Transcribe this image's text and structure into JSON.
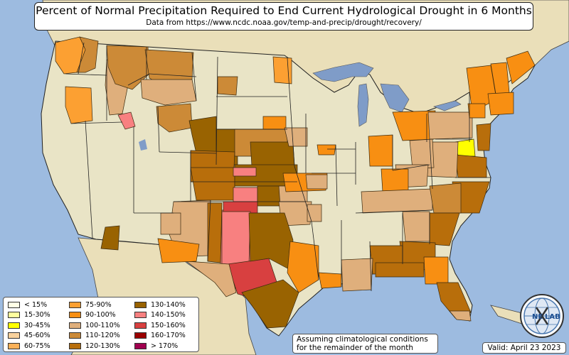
{
  "title": "Percent of Normal Precipitation Required to End Current Hydrological Drought in 6 Months",
  "subtitle": "Data from https://www.ncdc.noaa.gov/temp-and-precip/drought/recovery/",
  "note_line1": "Assuming climatological conditions",
  "note_line2": "for the remainder of the month",
  "valid": "Valid: April 23 2023",
  "logo": {
    "text_left": "NE",
    "text_right": "LAB"
  },
  "colors": {
    "ocean": "#9dbbe0",
    "land": "#e9e4c6",
    "land_other": "#eadfb9",
    "lake": "#7f9cc8",
    "border": "#222222"
  },
  "legend": [
    {
      "label": "< 15%",
      "color": "#ffffe6"
    },
    {
      "label": "15-30%",
      "color": "#ffff9e"
    },
    {
      "label": "30-45%",
      "color": "#ffff00"
    },
    {
      "label": "45-60%",
      "color": "#f9d29d"
    },
    {
      "label": "60-75%",
      "color": "#fbb159"
    },
    {
      "label": "75-90%",
      "color": "#fca032"
    },
    {
      "label": "90-100%",
      "color": "#f88f12"
    },
    {
      "label": "100-110%",
      "color": "#dfaf7c"
    },
    {
      "label": "110-120%",
      "color": "#cc8a37"
    },
    {
      "label": "120-130%",
      "color": "#b86e0b"
    },
    {
      "label": "130-140%",
      "color": "#996301"
    },
    {
      "label": "140-150%",
      "color": "#f88080"
    },
    {
      "label": "150-160%",
      "color": "#d84040"
    },
    {
      "label": "160-170%",
      "color": "#9a0000"
    },
    {
      "label": "> 170%",
      "color": "#a0004f"
    }
  ],
  "regions": [
    {
      "name": "wa-west",
      "category": "75-90%"
    },
    {
      "name": "wa-east",
      "category": "110-120%"
    },
    {
      "name": "or-central",
      "category": "75-90%"
    },
    {
      "name": "id-central",
      "category": "100-110%"
    },
    {
      "name": "id-south",
      "category": "140-150%"
    },
    {
      "name": "mt-west",
      "category": "110-120%"
    },
    {
      "name": "mt-central",
      "category": "110-120%"
    },
    {
      "name": "mt-east",
      "category": "100-110%"
    },
    {
      "name": "nd-east",
      "category": "75-90%"
    },
    {
      "name": "sd-west",
      "category": "110-120%"
    },
    {
      "name": "wy-west",
      "category": "110-120%"
    },
    {
      "name": "wy-east",
      "category": "130-140%"
    },
    {
      "name": "ne-west",
      "category": "130-140%"
    },
    {
      "name": "ne-central",
      "category": "110-120%"
    },
    {
      "name": "ne-east",
      "category": "130-140%"
    },
    {
      "name": "co-east",
      "category": "120-130%"
    },
    {
      "name": "ks-west",
      "category": "120-130%"
    },
    {
      "name": "ks-central",
      "category": "130-140%"
    },
    {
      "name": "ks-east",
      "category": "100-110%"
    },
    {
      "name": "co-se",
      "category": "140-150%"
    },
    {
      "name": "ok-panhandle",
      "category": "140-150%"
    },
    {
      "name": "ok-central",
      "category": "130-140%"
    },
    {
      "name": "ok-east",
      "category": "100-110%"
    },
    {
      "name": "nm-west",
      "category": "100-110%"
    },
    {
      "name": "nm-central",
      "category": "120-130%"
    },
    {
      "name": "nm-east",
      "category": "140-150%"
    },
    {
      "name": "tx-panhandle",
      "category": "150-160%"
    },
    {
      "name": "tx-west",
      "category": "140-150%"
    },
    {
      "name": "tx-central",
      "category": "150-160%"
    },
    {
      "name": "tx-big-bend",
      "category": "100-110%"
    },
    {
      "name": "tx-north",
      "category": "130-140%"
    },
    {
      "name": "tx-east",
      "category": "90-100%"
    },
    {
      "name": "tx-south",
      "category": "130-140%"
    },
    {
      "name": "la-south",
      "category": "90-100%"
    },
    {
      "name": "az-east",
      "category": "130-140%"
    },
    {
      "name": "az-south",
      "category": "90-100%"
    },
    {
      "name": "mn-south",
      "category": "90-100%"
    },
    {
      "name": "ia-west",
      "category": "100-110%"
    },
    {
      "name": "mo-north",
      "category": "90-100%"
    },
    {
      "name": "il-north",
      "category": "90-100%"
    },
    {
      "name": "in-central",
      "category": "90-100%"
    },
    {
      "name": "oh-ne",
      "category": "90-100%"
    },
    {
      "name": "pa-central",
      "category": "100-110%"
    },
    {
      "name": "ny-east",
      "category": "90-100%"
    },
    {
      "name": "vt-nh",
      "category": "90-100%"
    },
    {
      "name": "ma-ct",
      "category": "90-100%"
    },
    {
      "name": "me",
      "category": "90-100%"
    },
    {
      "name": "ny-south",
      "category": "90-100%"
    },
    {
      "name": "nj",
      "category": "120-130%"
    },
    {
      "name": "md-de",
      "category": "30-45%"
    },
    {
      "name": "va-east",
      "category": "120-130%"
    },
    {
      "name": "va-central",
      "category": "100-110%"
    },
    {
      "name": "wv",
      "category": "100-110%"
    },
    {
      "name": "ky-east",
      "category": "100-110%"
    },
    {
      "name": "ky-central",
      "category": "90-100%"
    },
    {
      "name": "tn-central",
      "category": "100-110%"
    },
    {
      "name": "nc-east",
      "category": "120-130%"
    },
    {
      "name": "nc-central",
      "category": "110-120%"
    },
    {
      "name": "sc",
      "category": "120-130%"
    },
    {
      "name": "ga-north",
      "category": "100-110%"
    },
    {
      "name": "ga-south",
      "category": "120-130%"
    },
    {
      "name": "al-south",
      "category": "120-130%"
    },
    {
      "name": "ms-south",
      "category": "100-110%"
    },
    {
      "name": "fl-panhandle",
      "category": "120-130%"
    },
    {
      "name": "fl-north",
      "category": "90-100%"
    },
    {
      "name": "fl-central",
      "category": "120-130%"
    },
    {
      "name": "fl-south",
      "category": "100-110%"
    },
    {
      "name": "ar-west",
      "category": "100-110%"
    },
    {
      "name": "mo-south",
      "category": "100-110%"
    },
    {
      "name": "ut-south",
      "category": "100-110%"
    }
  ]
}
